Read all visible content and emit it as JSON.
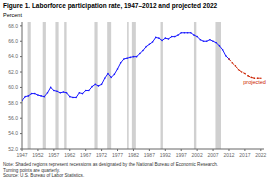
{
  "chart_data": {
    "type": "line",
    "title": "Figure 1. Laborforce participation rate, 1947–2012 and projected 2022",
    "y_label": "Percent",
    "note": "Note: Shaded regions represent recessions as designated by the National Bureau of Economic Research.\nTurning points are quarterly.",
    "source": "Source: U.S. Bureau of Labor Statistics.",
    "grid": false,
    "xlim": [
      1947,
      2023
    ],
    "xticks": [
      1947,
      1952,
      1957,
      1962,
      1967,
      1972,
      1977,
      1982,
      1987,
      1992,
      1997,
      2002,
      2007,
      2012,
      2017,
      2022
    ],
    "ylim": [
      52.0,
      68.5
    ],
    "yticks": [
      {
        "value": 52.0,
        "label": "52.0"
      },
      {
        "value": 54.0,
        "label": "54.0"
      },
      {
        "value": 56.0,
        "label": "56.0"
      },
      {
        "value": 58.0,
        "label": "58.0"
      },
      {
        "value": 60.0,
        "label": "60.0"
      },
      {
        "value": 62.0,
        "label": "62.0"
      },
      {
        "value": 64.0,
        "label": "64.0"
      },
      {
        "value": 66.0,
        "label": "66.0"
      },
      {
        "value": 68.0,
        "label": "68.0"
      }
    ],
    "recession_bands": [
      [
        1948.75,
        1949.75
      ],
      [
        1953.5,
        1954.5
      ],
      [
        1957.5,
        1958.5
      ],
      [
        1960.25,
        1961.0
      ],
      [
        1969.75,
        1970.75
      ],
      [
        1973.75,
        1975.0
      ],
      [
        1980.0,
        1980.5
      ],
      [
        1981.5,
        1982.75
      ],
      [
        1990.5,
        1991.25
      ],
      [
        2001.0,
        2001.75
      ],
      [
        2007.75,
        2009.5
      ]
    ],
    "recession_color": "#d0d0d0",
    "x": [
      1947,
      1948,
      1949,
      1950,
      1951,
      1952,
      1953,
      1954,
      1955,
      1956,
      1957,
      1958,
      1959,
      1960,
      1961,
      1962,
      1963,
      1964,
      1965,
      1966,
      1967,
      1968,
      1969,
      1970,
      1971,
      1972,
      1973,
      1974,
      1975,
      1976,
      1977,
      1978,
      1979,
      1980,
      1981,
      1982,
      1983,
      1984,
      1985,
      1986,
      1987,
      1988,
      1989,
      1990,
      1991,
      1992,
      1993,
      1994,
      1995,
      1996,
      1997,
      1998,
      1999,
      2000,
      2001,
      2002,
      2003,
      2004,
      2005,
      2006,
      2007,
      2008,
      2009,
      2010,
      2011,
      2012,
      2013,
      2014,
      2015,
      2016,
      2017,
      2018,
      2019,
      2020,
      2021,
      2022
    ],
    "series": [
      {
        "color": "#1a1aff",
        "line_style": "solid",
        "marker": "circle",
        "values": [
          58.3,
          58.8,
          58.9,
          59.2,
          59.2,
          59.0,
          58.9,
          58.8,
          59.3,
          60.0,
          59.6,
          59.5,
          59.3,
          59.4,
          59.3,
          58.8,
          58.7,
          58.7,
          59.3,
          59.2,
          59.6,
          59.6,
          60.1,
          60.4,
          60.2,
          60.4,
          61.2,
          61.8,
          61.3,
          61.7,
          62.4,
          63.2,
          63.7,
          63.8,
          63.9,
          64.0,
          64.0,
          64.4,
          64.8,
          65.3,
          65.6,
          65.9,
          66.5,
          66.4,
          66.1,
          66.4,
          66.3,
          66.6,
          66.6,
          66.8,
          67.1,
          67.1,
          67.1,
          67.1,
          66.8,
          66.6,
          66.2,
          66.0,
          66.0,
          66.2,
          66.0,
          65.8,
          65.4,
          64.9,
          64.1,
          63.7,
          null,
          null,
          null,
          null,
          null,
          null,
          null,
          null,
          null,
          null
        ]
      },
      {
        "color": "#cc2200",
        "line_style": "dashed",
        "marker": "circle",
        "values": [
          null,
          null,
          null,
          null,
          null,
          null,
          null,
          null,
          null,
          null,
          null,
          null,
          null,
          null,
          null,
          null,
          null,
          null,
          null,
          null,
          null,
          null,
          null,
          null,
          null,
          null,
          null,
          null,
          null,
          null,
          null,
          null,
          null,
          null,
          null,
          null,
          null,
          null,
          null,
          null,
          null,
          null,
          null,
          null,
          null,
          null,
          null,
          null,
          null,
          null,
          null,
          null,
          null,
          null,
          null,
          null,
          null,
          null,
          null,
          null,
          null,
          null,
          null,
          null,
          null,
          63.7,
          63.2,
          62.8,
          62.3,
          62.0,
          61.8,
          61.5,
          61.3,
          61.2,
          61.2,
          61.2
        ]
      }
    ],
    "annotations": [
      {
        "text": "projected",
        "x": 2016.5,
        "y": 61.05,
        "color": "#cc2200"
      }
    ]
  }
}
